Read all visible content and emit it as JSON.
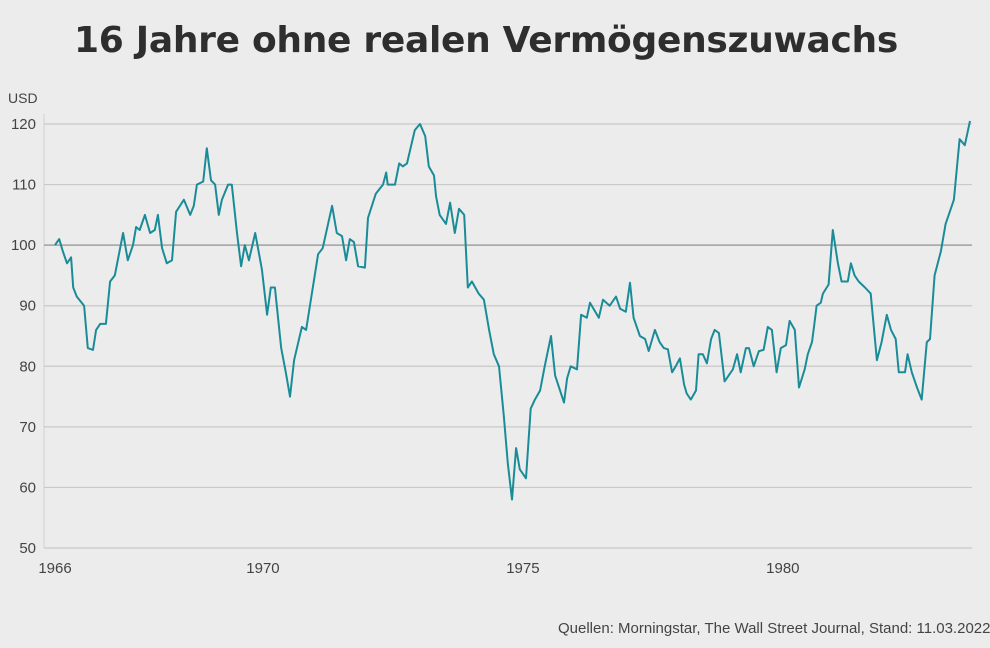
{
  "chart_data": {
    "type": "line",
    "title": "16 Jahre ohne realen Vermögenszuwachs",
    "ylabel": "USD",
    "xlabel": "",
    "source": "Quellen: Morningstar, The Wall Street Journal, Stand: 11.03.2022",
    "ylim": [
      50,
      120
    ],
    "yticks": [
      50,
      60,
      70,
      80,
      90,
      100,
      110,
      120
    ],
    "xlim": [
      1966,
      1983.6
    ],
    "xticks": [
      1966,
      1970,
      1975,
      1980
    ],
    "reference_line": 100,
    "grid": true,
    "line_color": "#1a8c98",
    "series": [
      {
        "x": [
          1966.0,
          1966.08,
          1966.15,
          1966.23,
          1966.31,
          1966.35,
          1966.42,
          1966.56,
          1966.63,
          1966.73,
          1966.79,
          1966.87,
          1966.98,
          1967.06,
          1967.15,
          1967.31,
          1967.4,
          1967.5,
          1967.56,
          1967.63,
          1967.73,
          1967.83,
          1967.92,
          1967.98,
          1968.06,
          1968.15,
          1968.25,
          1968.33,
          1968.48,
          1968.6,
          1968.67,
          1968.73,
          1968.85,
          1968.92,
          1969.0,
          1969.08,
          1969.15,
          1969.21,
          1969.33,
          1969.4,
          1969.5,
          1969.58,
          1969.65,
          1969.73,
          1969.85,
          1969.98,
          1970.08,
          1970.15,
          1970.23,
          1970.35,
          1970.44,
          1970.52,
          1970.6,
          1970.75,
          1970.83,
          1971.06,
          1971.15,
          1971.33,
          1971.42,
          1971.52,
          1971.6,
          1971.67,
          1971.75,
          1971.83,
          1971.96,
          1972.02,
          1972.17,
          1972.31,
          1972.37,
          1972.4,
          1972.54,
          1972.62,
          1972.69,
          1972.77,
          1972.92,
          1973.02,
          1973.12,
          1973.19,
          1973.29,
          1973.33,
          1973.4,
          1973.52,
          1973.6,
          1973.69,
          1973.77,
          1973.87,
          1973.94,
          1974.02,
          1974.15,
          1974.25,
          1974.35,
          1974.44,
          1974.54,
          1974.63,
          1974.71,
          1974.79,
          1974.87,
          1974.94,
          1975.06,
          1975.15,
          1975.23,
          1975.33,
          1975.42,
          1975.54,
          1975.62,
          1975.79,
          1975.85,
          1975.92,
          1976.04,
          1976.12,
          1976.23,
          1976.29,
          1976.46,
          1976.54,
          1976.67,
          1976.79,
          1976.87,
          1976.98,
          1977.06,
          1977.13,
          1977.25,
          1977.35,
          1977.42,
          1977.54,
          1977.63,
          1977.71,
          1977.79,
          1977.87,
          1977.94,
          1978.02,
          1978.1,
          1978.15,
          1978.23,
          1978.33,
          1978.38,
          1978.46,
          1978.54,
          1978.62,
          1978.69,
          1978.77,
          1978.88,
          1979.04,
          1979.12,
          1979.19,
          1979.29,
          1979.35,
          1979.44,
          1979.54,
          1979.63,
          1979.71,
          1979.79,
          1979.88,
          1979.96,
          1980.06,
          1980.13,
          1980.23,
          1980.31,
          1980.42,
          1980.48,
          1980.56,
          1980.6,
          1980.65,
          1980.73,
          1980.77,
          1980.88,
          1980.96,
          1981.06,
          1981.13,
          1981.25,
          1981.31,
          1981.38,
          1981.46,
          1981.58,
          1981.69,
          1981.81,
          1981.9,
          1982.0,
          1982.08,
          1982.17,
          1982.23,
          1982.35,
          1982.4,
          1982.48,
          1982.58,
          1982.67,
          1982.77,
          1982.83,
          1982.92,
          1983.04,
          1983.13,
          1983.23,
          1983.29,
          1983.4,
          1983.5,
          1983.6
        ],
        "y": [
          100,
          101,
          99,
          97,
          98,
          93,
          91.5,
          90,
          83,
          82.7,
          86,
          87,
          87,
          94,
          95,
          102,
          97.5,
          100,
          103,
          102.5,
          105,
          102,
          102.5,
          105,
          99.5,
          97,
          97.5,
          105.5,
          107.5,
          105,
          106.5,
          110,
          110.5,
          116,
          110.7,
          110,
          105,
          107.5,
          110,
          110,
          102,
          96.5,
          100,
          97.5,
          102,
          96,
          88.5,
          93,
          93,
          83,
          79,
          75,
          81,
          86.5,
          86,
          98.5,
          99.5,
          106.5,
          102,
          101.5,
          97.5,
          101,
          100.5,
          96.5,
          96.3,
          104.5,
          108.5,
          110,
          112,
          110,
          110,
          113.5,
          113,
          113.5,
          119,
          120,
          118,
          113,
          111.5,
          108,
          105,
          103.5,
          107,
          102,
          106,
          105,
          93,
          94,
          92,
          91,
          86,
          82,
          80,
          72,
          64,
          58,
          66.5,
          63,
          61.5,
          73,
          74.5,
          76,
          80,
          85,
          78.5,
          74,
          78,
          80,
          79.5,
          88.5,
          88,
          90.5,
          88,
          91,
          90,
          91.5,
          89.5,
          89,
          93.8,
          88,
          85,
          84.5,
          82.5,
          86,
          84,
          83,
          82.8,
          79,
          80,
          81.3,
          77,
          75.5,
          74.5,
          76,
          82,
          82,
          80.5,
          84.5,
          86,
          85.5,
          77.5,
          79.5,
          82,
          79,
          83,
          83,
          80,
          82.5,
          82.7,
          86.5,
          86,
          79,
          83,
          83.5,
          87.5,
          86,
          76.5,
          79.5,
          82,
          84,
          86.5,
          90,
          90.5,
          92,
          93.5,
          102.5,
          97,
          94,
          94,
          97,
          95,
          94,
          93,
          92,
          81,
          84,
          88.5,
          86,
          84.5,
          79,
          79,
          82,
          79,
          76.5,
          74.5,
          84,
          84.5,
          95,
          99,
          103.5,
          106,
          107.5,
          117.5,
          116.5,
          120.5
        ]
      }
    ]
  }
}
